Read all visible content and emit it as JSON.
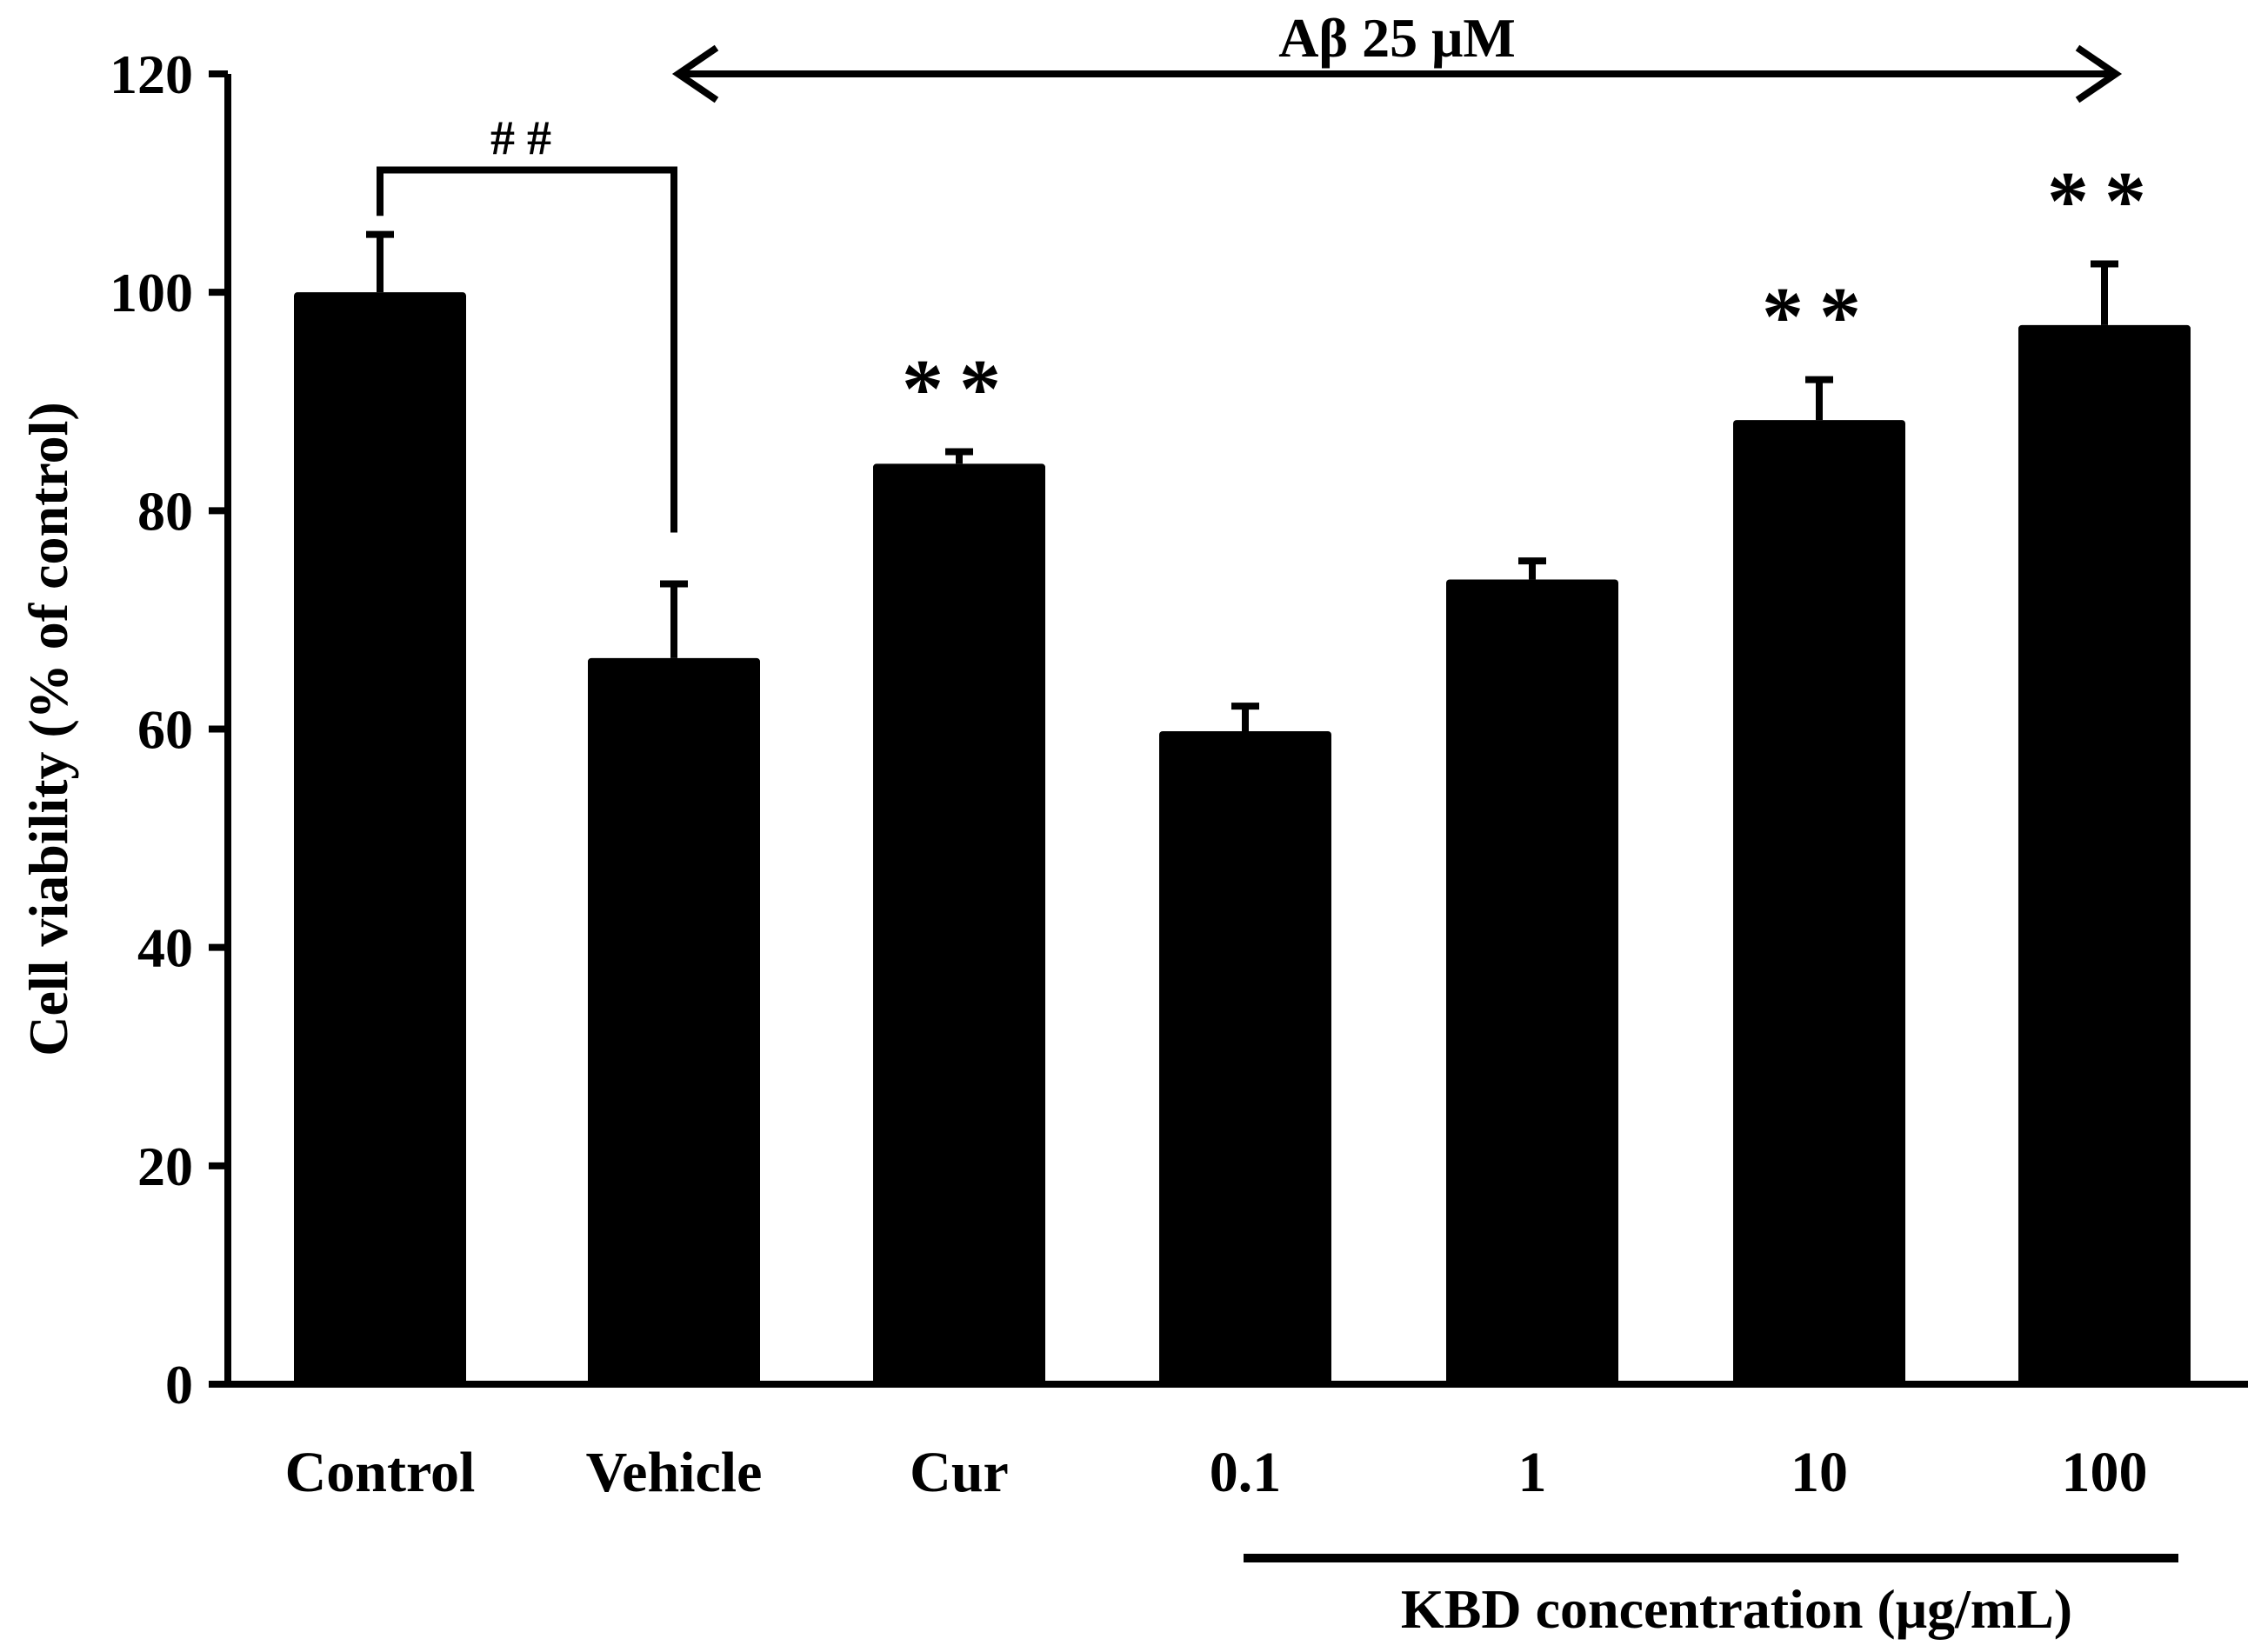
{
  "chart_data": {
    "type": "bar",
    "categories": [
      "Control",
      "Vehicle",
      "Cur",
      "0.1",
      "1",
      "10",
      "100"
    ],
    "values": [
      100,
      66.5,
      84.3,
      59.8,
      73.7,
      88.3,
      97.0
    ],
    "errors": [
      5.3,
      6.8,
      1.1,
      2.3,
      1.7,
      3.7,
      5.6
    ],
    "significance": [
      "",
      "",
      "**",
      "",
      "",
      "**",
      "**"
    ],
    "ylabel": "Cell viability (% of control)",
    "ylim": [
      0,
      120
    ],
    "yticks": [
      0,
      20,
      40,
      60,
      80,
      100,
      120
    ],
    "annotations": {
      "treatment_label": "Aβ 25 μM",
      "comparison_marker": "##",
      "group_label": "KBD concentration (μg/mL)"
    },
    "bar_color": "#000000",
    "grid": false,
    "legend": "none"
  }
}
